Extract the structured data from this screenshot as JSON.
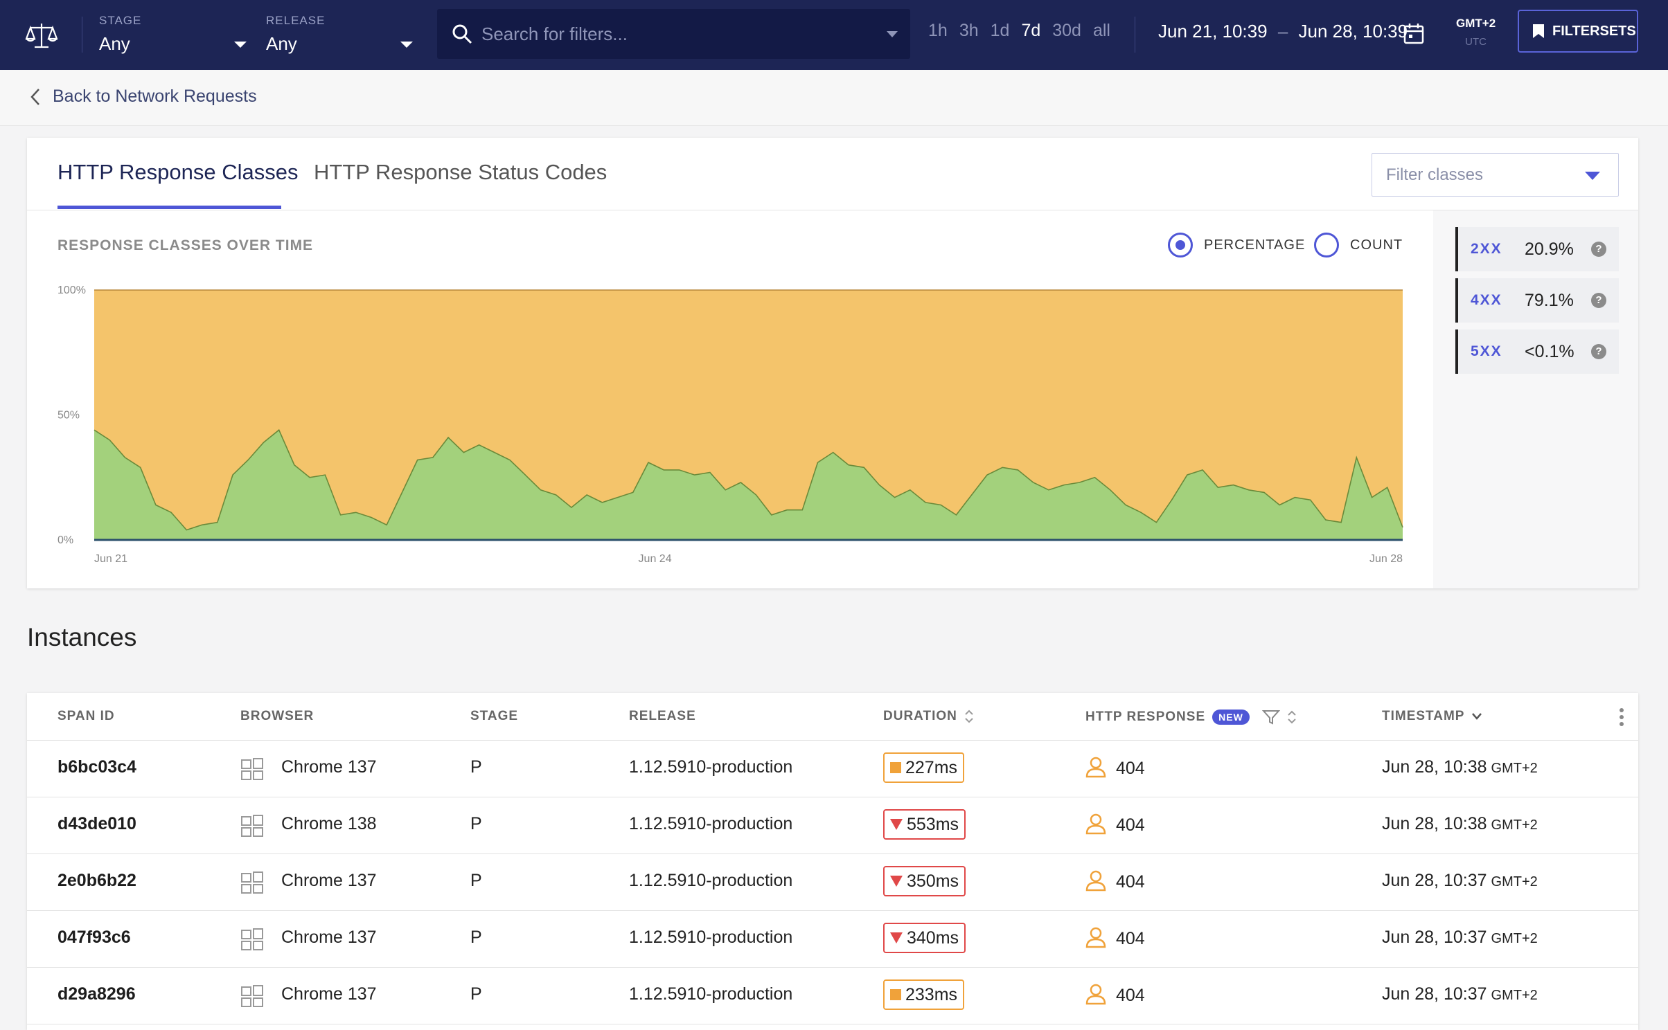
{
  "topbar": {
    "stage_label": "STAGE",
    "stage_value": "Any",
    "release_label": "RELEASE",
    "release_value": "Any",
    "search_placeholder": "Search for filters...",
    "ranges": [
      "1h",
      "3h",
      "1d",
      "7d",
      "30d",
      "all"
    ],
    "active_range": "7d",
    "date_from": "Jun 21, 10:39",
    "date_sep": "–",
    "date_to": "Jun 28, 10:39",
    "tz_main": "GMT+2",
    "tz_sub": "UTC",
    "filtersets_label": "FILTERSETS"
  },
  "back": {
    "label": "Back to Network Requests"
  },
  "card": {
    "tabs": [
      "HTTP Response Classes",
      "HTTP Response Status Codes"
    ],
    "active_tab": 0,
    "filter_placeholder": "Filter classes",
    "chart_title": "RESPONSE CLASSES OVER TIME",
    "radio_percentage": "PERCENTAGE",
    "radio_count": "COUNT",
    "radio_selected": "PERCENTAGE",
    "legend": [
      {
        "key": "2XX",
        "value": "20.9%",
        "color": "#a3d17c",
        "help": "?"
      },
      {
        "key": "4XX",
        "value": "79.1%",
        "color": "#f4c46b",
        "help": "?"
      },
      {
        "key": "5XX",
        "value": "<0.1%",
        "color": "#ef8f95",
        "help": "?"
      }
    ]
  },
  "chart_data": {
    "type": "area",
    "title": "RESPONSE CLASSES OVER TIME",
    "ylim": [
      0,
      100
    ],
    "y_ticks": [
      "0%",
      "50%",
      "100%"
    ],
    "x_ticks": [
      "Jun 21",
      "Jun 24",
      "Jun 28"
    ],
    "stacked": true,
    "series": [
      {
        "name": "2XX",
        "color": "#a3d17c",
        "values": [
          44,
          40,
          33,
          29,
          14,
          11,
          4,
          6,
          7,
          26,
          32,
          39,
          44,
          30,
          25,
          26,
          10,
          11,
          9,
          6,
          19,
          32,
          33,
          41,
          35,
          38,
          35,
          32,
          26,
          20,
          18,
          13,
          18,
          15,
          17,
          19,
          31,
          28,
          28,
          26,
          27,
          20,
          23,
          18,
          10,
          12,
          12,
          31,
          35,
          30,
          29,
          22,
          17,
          20,
          15,
          14,
          10,
          18,
          26,
          29,
          28,
          23,
          20,
          22,
          23,
          25,
          20,
          14,
          11,
          7,
          16,
          26,
          28,
          21,
          22,
          20,
          19,
          14,
          17,
          16,
          8,
          7,
          33,
          17,
          21,
          5
        ]
      },
      {
        "name": "4XX",
        "color": "#f4c46b"
      },
      {
        "name": "5XX",
        "color": "#ef8f95"
      }
    ]
  },
  "instances": {
    "title": "Instances",
    "columns": [
      "SPAN ID",
      "BROWSER",
      "STAGE",
      "RELEASE",
      "DURATION",
      "HTTP RESPONSE",
      "TIMESTAMP"
    ],
    "new_badge": "NEW",
    "rows": [
      {
        "span_id": "b6bc03c4",
        "browser": "Chrome 137",
        "stage": "P",
        "release": "1.12.5910-production",
        "duration": "227ms",
        "dur_status": "ok",
        "http": "404",
        "timestamp": "Jun 28, 10:38",
        "tz": "GMT+2"
      },
      {
        "span_id": "d43de010",
        "browser": "Chrome 138",
        "stage": "P",
        "release": "1.12.5910-production",
        "duration": "553ms",
        "dur_status": "bad",
        "http": "404",
        "timestamp": "Jun 28, 10:38",
        "tz": "GMT+2"
      },
      {
        "span_id": "2e0b6b22",
        "browser": "Chrome 137",
        "stage": "P",
        "release": "1.12.5910-production",
        "duration": "350ms",
        "dur_status": "bad",
        "http": "404",
        "timestamp": "Jun 28, 10:37",
        "tz": "GMT+2"
      },
      {
        "span_id": "047f93c6",
        "browser": "Chrome 137",
        "stage": "P",
        "release": "1.12.5910-production",
        "duration": "340ms",
        "dur_status": "bad",
        "http": "404",
        "timestamp": "Jun 28, 10:37",
        "tz": "GMT+2"
      },
      {
        "span_id": "d29a8296",
        "browser": "Chrome 137",
        "stage": "P",
        "release": "1.12.5910-production",
        "duration": "233ms",
        "dur_status": "ok",
        "http": "404",
        "timestamp": "Jun 28, 10:37",
        "tz": "GMT+2"
      }
    ]
  }
}
